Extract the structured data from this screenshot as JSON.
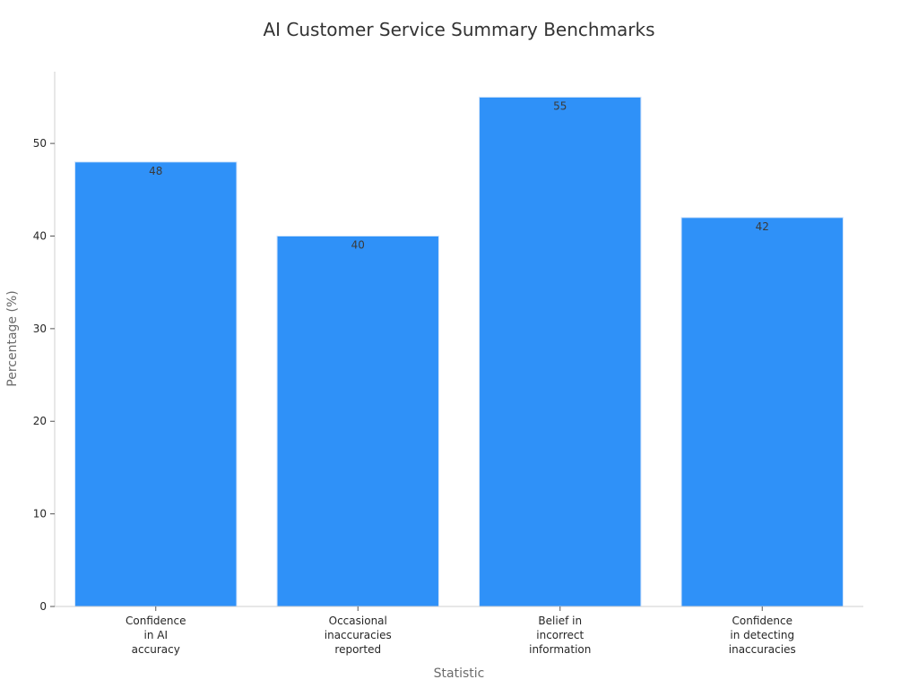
{
  "chart_data": {
    "type": "bar",
    "title": "AI Customer Service Summary Benchmarks",
    "xlabel": "Statistic",
    "ylabel": "Percentage (%)",
    "categories": [
      [
        "Confidence",
        "in AI",
        "accuracy"
      ],
      [
        "Occasional",
        "inaccuracies",
        "reported"
      ],
      [
        "Belief in",
        "incorrect",
        "information"
      ],
      [
        "Confidence",
        "in detecting",
        "inaccuracies"
      ]
    ],
    "values": [
      48,
      40,
      55,
      42
    ],
    "data_labels": [
      "48",
      "40",
      "55",
      "42"
    ],
    "ylim": [
      0,
      57.75
    ],
    "yticks": [
      0,
      10,
      20,
      30,
      40,
      50
    ],
    "ytick_labels": [
      "0",
      "10",
      "20",
      "30",
      "40",
      "50"
    ],
    "grid": false,
    "bar_color": "#2f91f8",
    "bar_edge_color": "#d0e4fb"
  }
}
